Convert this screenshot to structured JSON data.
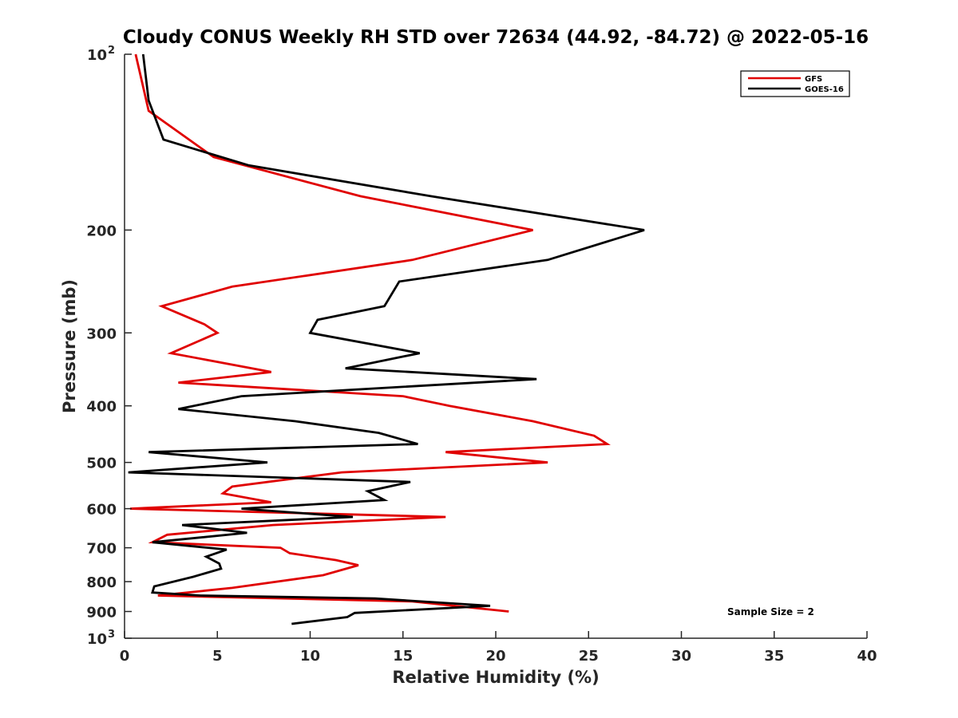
{
  "chart_data": {
    "type": "line",
    "title": "Cloudy CONUS Weekly RH STD over 72634 (44.92, -84.72) @ 2022-05-16",
    "xlabel": "Relative Humidity (%)",
    "ylabel": "Pressure (mb)",
    "xlim": [
      0,
      40
    ],
    "ylim": [
      100,
      1000
    ],
    "y_scale": "log",
    "y_reversed": true,
    "grid": false,
    "x_ticks": [
      "0",
      "5",
      "10",
      "15",
      "20",
      "25",
      "30",
      "35",
      "40"
    ],
    "y_ticks": [
      {
        "value": 100,
        "label": "10",
        "sup": "2"
      },
      {
        "value": 200,
        "label": "200",
        "sup": ""
      },
      {
        "value": 300,
        "label": "300",
        "sup": ""
      },
      {
        "value": 400,
        "label": "400",
        "sup": ""
      },
      {
        "value": 500,
        "label": "500",
        "sup": ""
      },
      {
        "value": 600,
        "label": "600",
        "sup": ""
      },
      {
        "value": 700,
        "label": "700",
        "sup": ""
      },
      {
        "value": 800,
        "label": "800",
        "sup": ""
      },
      {
        "value": 900,
        "label": "900",
        "sup": ""
      },
      {
        "value": 1000,
        "label": "10",
        "sup": "3"
      }
    ],
    "legend": {
      "position": "top-right"
    },
    "annotations": [
      "Sample Size = 2"
    ],
    "series": [
      {
        "name": "GFS",
        "color": "#e00000",
        "points": [
          [
            0.6,
            100
          ],
          [
            1.3,
            125
          ],
          [
            4.8,
            150
          ],
          [
            12.7,
            175
          ],
          [
            22.0,
            200
          ],
          [
            15.5,
            225
          ],
          [
            5.8,
            250
          ],
          [
            2.0,
            270
          ],
          [
            4.3,
            290
          ],
          [
            5.0,
            300
          ],
          [
            2.5,
            325
          ],
          [
            7.9,
            350
          ],
          [
            2.9,
            365
          ],
          [
            15.0,
            385
          ],
          [
            17.5,
            400
          ],
          [
            22.0,
            425
          ],
          [
            25.3,
            450
          ],
          [
            26.0,
            465
          ],
          [
            17.3,
            480
          ],
          [
            22.8,
            500
          ],
          [
            11.7,
            520
          ],
          [
            5.8,
            550
          ],
          [
            5.3,
            565
          ],
          [
            7.9,
            585
          ],
          [
            0.3,
            600
          ],
          [
            17.3,
            620
          ],
          [
            8.0,
            640
          ],
          [
            2.3,
            665
          ],
          [
            1.5,
            685
          ],
          [
            8.4,
            700
          ],
          [
            8.9,
            715
          ],
          [
            11.4,
            735
          ],
          [
            12.6,
            750
          ],
          [
            10.7,
            780
          ],
          [
            5.8,
            820
          ],
          [
            1.8,
            845
          ],
          [
            15.5,
            865
          ],
          [
            20.7,
            900
          ]
        ]
      },
      {
        "name": "GOES-16",
        "color": "#000000",
        "points": [
          [
            1.0,
            100
          ],
          [
            1.3,
            120
          ],
          [
            2.1,
            140
          ],
          [
            6.7,
            155
          ],
          [
            16.5,
            175
          ],
          [
            28.0,
            200
          ],
          [
            22.8,
            225
          ],
          [
            14.8,
            245
          ],
          [
            14.0,
            270
          ],
          [
            10.4,
            285
          ],
          [
            10.0,
            300
          ],
          [
            15.9,
            325
          ],
          [
            11.9,
            345
          ],
          [
            22.2,
            360
          ],
          [
            6.3,
            385
          ],
          [
            2.9,
            405
          ],
          [
            9.2,
            425
          ],
          [
            13.7,
            445
          ],
          [
            15.8,
            465
          ],
          [
            1.3,
            480
          ],
          [
            7.7,
            500
          ],
          [
            0.2,
            520
          ],
          [
            15.4,
            540
          ],
          [
            13.1,
            560
          ],
          [
            14.0,
            580
          ],
          [
            6.3,
            600
          ],
          [
            12.3,
            620
          ],
          [
            3.1,
            640
          ],
          [
            6.6,
            660
          ],
          [
            1.5,
            685
          ],
          [
            5.5,
            705
          ],
          [
            4.4,
            725
          ],
          [
            5.1,
            745
          ],
          [
            5.2,
            760
          ],
          [
            3.7,
            785
          ],
          [
            1.6,
            815
          ],
          [
            1.5,
            835
          ],
          [
            4.1,
            845
          ],
          [
            13.5,
            855
          ],
          [
            19.7,
            880
          ],
          [
            12.4,
            905
          ],
          [
            12.0,
            920
          ],
          [
            9.0,
            945
          ]
        ]
      }
    ]
  }
}
